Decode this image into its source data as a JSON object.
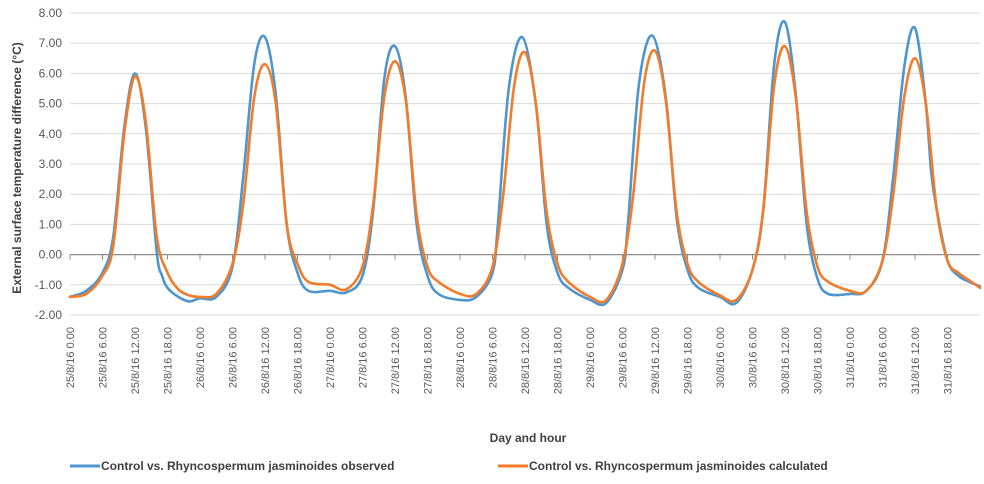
{
  "chart_data": {
    "type": "line",
    "xlabel": "Day and hour",
    "ylabel": "External surface temperature difference (°C)",
    "ylim": [
      -2,
      8
    ],
    "y_ticks": [
      "-2.00",
      "-1.00",
      "0.00",
      "1.00",
      "2.00",
      "3.00",
      "4.00",
      "5.00",
      "6.00",
      "7.00",
      "8.00"
    ],
    "x_ticks": [
      "25/8/16 0.00",
      "25/8/16 6.00",
      "25/8/16 12.00",
      "25/8/16 18.00",
      "26/8/16 0.00",
      "26/8/16 6.00",
      "26/8/16 12.00",
      "26/8/16 18.00",
      "27/8/16 0.00",
      "27/8/16 6.00",
      "27/8/16 12.00",
      "27/8/16 18.00",
      "28/8/16 0.00",
      "28/8/16 6.00",
      "28/8/16 12.00",
      "28/8/16 18.00",
      "29/8/16 0.00",
      "29/8/16 6.00",
      "29/8/16 12.00",
      "29/8/16 18.00",
      "30/8/16 0.00",
      "30/8/16 6.00",
      "30/8/16 12.00",
      "30/8/16 18.00",
      "31/8/16 0.00",
      "31/8/16 6.00",
      "31/8/16 12.00",
      "31/8/16 18.00"
    ],
    "grid": "horizontal",
    "legend_position": "bottom",
    "series": [
      {
        "name": "Control vs. Rhyncospermum  jasminoides observed",
        "color": "#4f96cd",
        "hours": [
          0,
          3,
          6,
          8,
          10,
          12,
          14,
          16,
          17,
          18,
          20,
          22,
          24,
          27,
          30,
          32,
          34,
          36,
          38,
          40,
          42,
          44,
          48,
          51,
          54,
          56,
          58,
          60,
          62,
          64,
          66,
          68,
          72,
          75,
          78,
          79,
          81,
          83.5,
          86,
          88,
          90,
          92,
          96,
          99,
          102,
          103,
          105,
          107.5,
          110,
          112,
          114,
          116,
          120,
          123,
          126,
          128,
          130,
          132,
          134,
          136,
          138,
          140,
          144,
          147,
          150,
          152,
          154,
          156,
          158,
          159,
          160,
          162,
          164,
          166,
          168
        ],
        "values": [
          -1.4,
          -1.2,
          -0.6,
          0.6,
          4.2,
          6.0,
          4.2,
          0.1,
          -0.7,
          -1.1,
          -1.4,
          -1.55,
          -1.45,
          -1.4,
          -0.4,
          2.6,
          6.3,
          7.2,
          5.3,
          1.0,
          -0.6,
          -1.2,
          -1.2,
          -1.25,
          -0.7,
          1.5,
          5.8,
          6.9,
          5.2,
          1.0,
          -0.7,
          -1.3,
          -1.5,
          -1.4,
          -0.6,
          1.0,
          5.5,
          7.2,
          5.0,
          1.0,
          -0.6,
          -1.1,
          -1.5,
          -1.6,
          -0.5,
          1.0,
          5.6,
          7.25,
          5.2,
          1.2,
          -0.5,
          -1.1,
          -1.4,
          -1.6,
          -0.5,
          1.5,
          6.3,
          7.7,
          5.3,
          1.0,
          -0.8,
          -1.3,
          -1.3,
          -1.2,
          -0.2,
          2.6,
          6.2,
          7.5,
          5.0,
          2.7,
          1.5,
          -0.2,
          -0.7,
          -0.9,
          -1.05
        ]
      },
      {
        "name": "Control vs. Rhyncospermum  jasminoides calculated",
        "color": "#f07c2c",
        "hours": [
          0,
          3,
          6,
          8,
          10,
          12,
          14,
          16,
          18,
          20,
          22,
          24,
          27,
          30,
          32,
          34,
          36,
          38,
          40,
          42,
          44,
          48,
          51,
          54,
          56,
          58,
          60,
          62,
          64,
          66,
          68,
          72,
          75,
          78,
          80,
          82,
          84,
          86,
          88,
          90,
          92,
          96,
          99,
          102,
          104,
          106,
          108,
          110,
          112,
          114,
          116,
          120,
          123,
          126,
          128,
          130,
          132,
          134,
          136,
          138,
          140,
          144,
          147,
          150,
          152,
          154,
          156,
          158,
          160,
          162,
          164,
          166,
          168
        ],
        "values": [
          -1.4,
          -1.3,
          -0.7,
          0.3,
          4.0,
          5.9,
          4.4,
          0.6,
          -0.6,
          -1.15,
          -1.35,
          -1.4,
          -1.3,
          -0.3,
          1.7,
          5.2,
          6.3,
          5.0,
          1.0,
          -0.3,
          -0.9,
          -1.0,
          -1.15,
          -0.4,
          1.7,
          5.2,
          6.4,
          5.1,
          1.3,
          -0.4,
          -0.9,
          -1.3,
          -1.3,
          -0.4,
          2.0,
          5.6,
          6.7,
          5.0,
          1.4,
          -0.3,
          -0.9,
          -1.4,
          -1.5,
          -0.3,
          2.0,
          5.7,
          6.75,
          5.1,
          1.4,
          -0.3,
          -0.9,
          -1.35,
          -1.5,
          -0.5,
          1.5,
          5.6,
          6.9,
          5.2,
          1.4,
          -0.4,
          -0.9,
          -1.2,
          -1.2,
          -0.2,
          2.0,
          5.2,
          6.5,
          5.0,
          1.5,
          -0.2,
          -0.6,
          -0.85,
          -1.1
        ]
      }
    ]
  }
}
